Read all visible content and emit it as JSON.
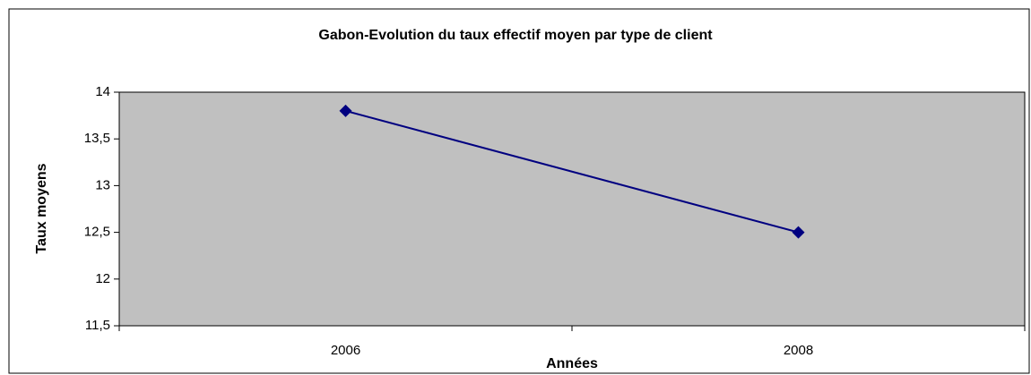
{
  "chart_data": {
    "type": "line",
    "title": "Gabon-Evolution du taux effectif moyen par type de client",
    "x_label": "Années",
    "y_label": "Taux moyens",
    "categories": [
      "2006",
      "2008"
    ],
    "series": [
      {
        "name": "Taux moyens",
        "color": "#000080",
        "values": [
          13.8,
          12.5
        ]
      }
    ],
    "ylim": [
      11.5,
      14
    ],
    "yticks": [
      {
        "value": 11.5,
        "label": "11,5"
      },
      12,
      {
        "value": 12.5,
        "label": "12,5"
      },
      13,
      {
        "value": 13.5,
        "label": "13,5"
      },
      14
    ],
    "plot_background": "#c0c0c0"
  }
}
